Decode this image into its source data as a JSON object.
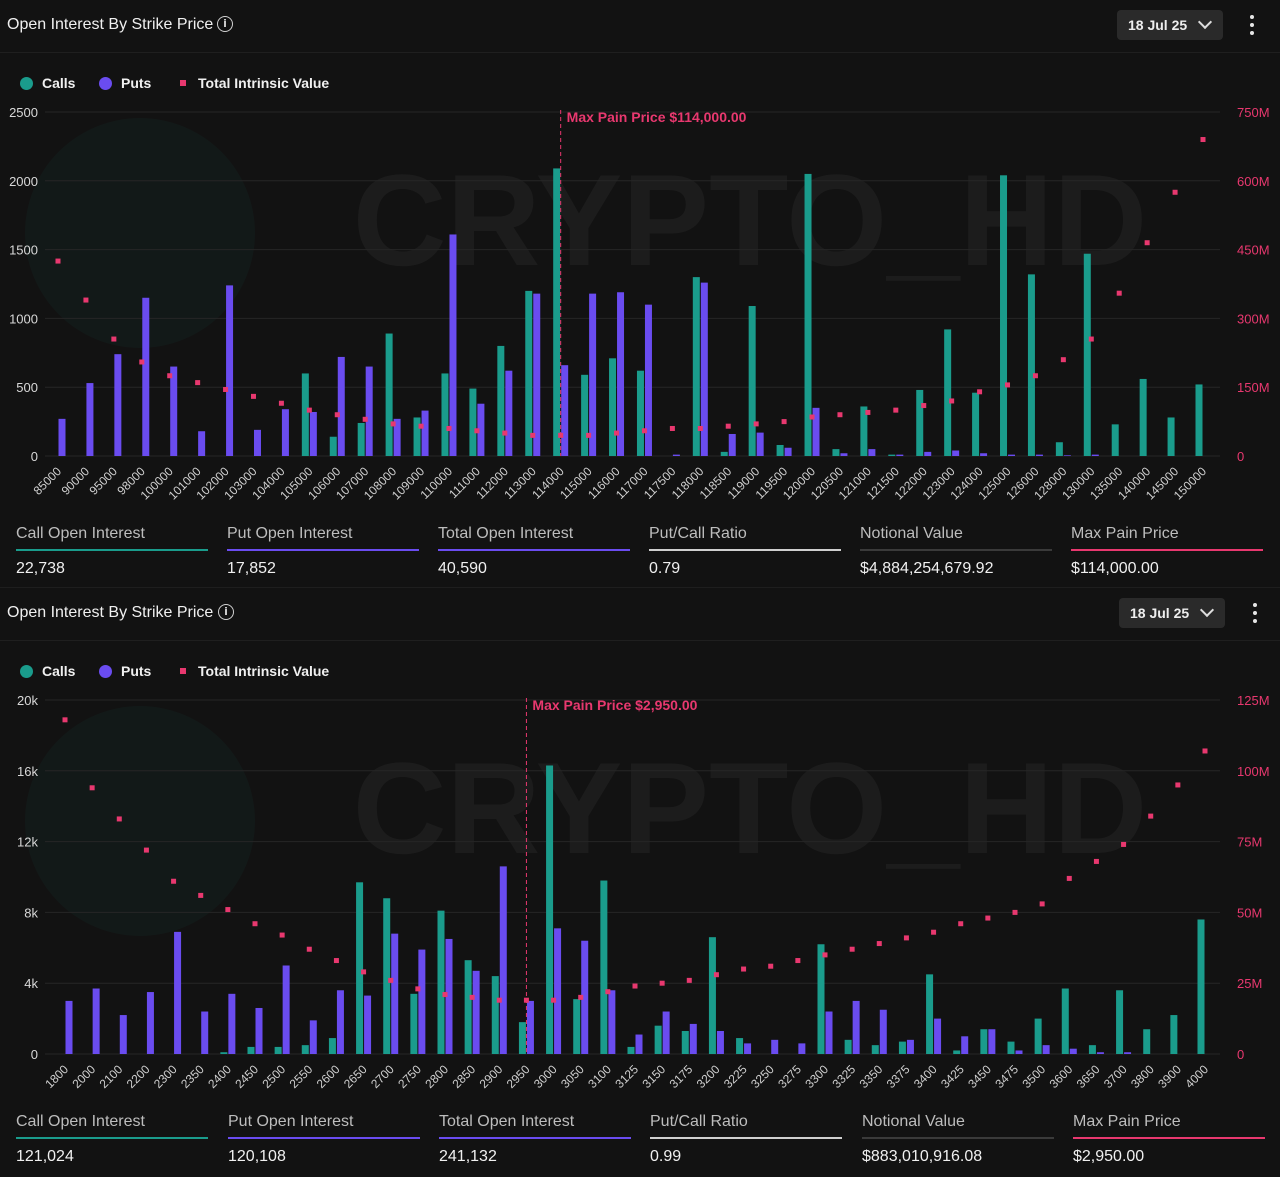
{
  "colors": {
    "calls": "#1a9c8c",
    "puts": "#6a4cf0",
    "intrinsic": "#e8386f",
    "axis_left": "#d8d8d8",
    "axis_right": "#e8386f"
  },
  "watermark": "CRYPTO_HD",
  "panels": [
    {
      "title": "Open Interest By Strike Price",
      "info_icon": "info-icon",
      "date": "18 Jul 25",
      "legend": {
        "calls": "Calls",
        "puts": "Puts",
        "intrinsic": "Total Intrinsic Value"
      },
      "stats": [
        {
          "label": "Call Open Interest",
          "value": "22,738",
          "color": "#1a9c8c"
        },
        {
          "label": "Put Open Interest",
          "value": "17,852",
          "color": "#6a4cf0"
        },
        {
          "label": "Total Open Interest",
          "value": "40,590",
          "color": "#6a4cf0"
        },
        {
          "label": "Put/Call Ratio",
          "value": "0.79",
          "color": "#cfcfcf"
        },
        {
          "label": "Notional Value",
          "value": "$4,884,254,679.92",
          "color": "#3a3a3a"
        },
        {
          "label": "Max Pain Price",
          "value": "$114,000.00",
          "color": "#e8386f"
        }
      ]
    },
    {
      "title": "Open Interest By Strike Price",
      "info_icon": "info-icon",
      "date": "18 Jul 25",
      "legend": {
        "calls": "Calls",
        "puts": "Puts",
        "intrinsic": "Total Intrinsic Value"
      },
      "stats": [
        {
          "label": "Call Open Interest",
          "value": "121,024",
          "color": "#1a9c8c"
        },
        {
          "label": "Put Open Interest",
          "value": "120,108",
          "color": "#6a4cf0"
        },
        {
          "label": "Total Open Interest",
          "value": "241,132",
          "color": "#6a4cf0"
        },
        {
          "label": "Put/Call Ratio",
          "value": "0.99",
          "color": "#cfcfcf"
        },
        {
          "label": "Notional Value",
          "value": "$883,010,916.08",
          "color": "#3a3a3a"
        },
        {
          "label": "Max Pain Price",
          "value": "$2,950.00",
          "color": "#e8386f"
        }
      ]
    }
  ],
  "chart_data": [
    {
      "type": "bar",
      "categories": [
        "85000",
        "90000",
        "95000",
        "98000",
        "100000",
        "101000",
        "102000",
        "103000",
        "104000",
        "105000",
        "106000",
        "107000",
        "108000",
        "109000",
        "110000",
        "111000",
        "112000",
        "113000",
        "114000",
        "115000",
        "116000",
        "117000",
        "117500",
        "118000",
        "118500",
        "119000",
        "119500",
        "120000",
        "120500",
        "121000",
        "121500",
        "122000",
        "123000",
        "124000",
        "125000",
        "126000",
        "128000",
        "130000",
        "135000",
        "140000",
        "145000",
        "150000"
      ],
      "series": [
        {
          "name": "Calls",
          "axis": "left",
          "values": [
            0,
            0,
            0,
            0,
            0,
            0,
            0,
            0,
            0,
            600,
            140,
            240,
            890,
            280,
            600,
            490,
            800,
            1200,
            2090,
            590,
            710,
            620,
            0,
            1300,
            30,
            1090,
            80,
            2050,
            50,
            360,
            10,
            480,
            920,
            460,
            2040,
            1320,
            100,
            1470,
            230,
            560,
            280,
            520
          ]
        },
        {
          "name": "Puts",
          "axis": "left",
          "values": [
            270,
            530,
            740,
            1150,
            650,
            180,
            1240,
            190,
            340,
            320,
            720,
            650,
            270,
            330,
            1610,
            380,
            620,
            1180,
            660,
            1180,
            1190,
            1100,
            10,
            1260,
            160,
            170,
            60,
            350,
            20,
            50,
            10,
            30,
            40,
            20,
            10,
            10,
            5,
            10,
            0,
            0,
            0,
            0
          ]
        },
        {
          "name": "Total Intrinsic Value",
          "axis": "right",
          "type": "scatter",
          "values": [
            425,
            340,
            255,
            205,
            175,
            160,
            145,
            130,
            115,
            100,
            90,
            80,
            70,
            65,
            60,
            55,
            50,
            45,
            45,
            45,
            50,
            55,
            60,
            60,
            65,
            70,
            75,
            85,
            90,
            95,
            100,
            110,
            120,
            140,
            155,
            175,
            210,
            255,
            355,
            465,
            575,
            690
          ]
        }
      ],
      "ylim": [
        0,
        2500
      ],
      "yticks": [
        "0",
        "500",
        "1000",
        "1500",
        "2000",
        "2500"
      ],
      "y2lim": [
        0,
        750
      ],
      "y2ticks": [
        "0",
        "150M",
        "300M",
        "450M",
        "600M",
        "750M"
      ],
      "marker": {
        "category": "114000",
        "label": "Max Pain Price $114,000.00"
      },
      "grid": true,
      "legend": "top-left"
    },
    {
      "type": "bar",
      "categories": [
        "1800",
        "2000",
        "2100",
        "2200",
        "2300",
        "2350",
        "2400",
        "2450",
        "2500",
        "2550",
        "2600",
        "2650",
        "2700",
        "2750",
        "2800",
        "2850",
        "2900",
        "2950",
        "3000",
        "3050",
        "3100",
        "3125",
        "3150",
        "3175",
        "3200",
        "3225",
        "3250",
        "3275",
        "3300",
        "3325",
        "3350",
        "3375",
        "3400",
        "3425",
        "3450",
        "3475",
        "3500",
        "3600",
        "3650",
        "3700",
        "3800",
        "3900",
        "4000"
      ],
      "series": [
        {
          "name": "Calls",
          "axis": "left",
          "values": [
            0,
            0,
            0,
            0,
            0,
            0,
            100,
            400,
            400,
            500,
            900,
            9700,
            8800,
            3400,
            8100,
            5300,
            4400,
            1800,
            16300,
            3100,
            9800,
            400,
            1600,
            1300,
            6600,
            900,
            0,
            0,
            6200,
            800,
            500,
            700,
            4500,
            200,
            1400,
            700,
            2000,
            3700,
            500,
            3600,
            1400,
            2200,
            7600
          ]
        },
        {
          "name": "Puts",
          "axis": "left",
          "values": [
            3000,
            3700,
            2200,
            3500,
            6900,
            2400,
            3400,
            2600,
            5000,
            1900,
            3600,
            3300,
            6800,
            5900,
            6500,
            4700,
            10600,
            3000,
            7100,
            6400,
            3600,
            1100,
            2400,
            1700,
            1300,
            600,
            800,
            600,
            2400,
            3000,
            2500,
            800,
            2000,
            1000,
            1400,
            200,
            500,
            300,
            100,
            100,
            0,
            0,
            0
          ]
        },
        {
          "name": "Total Intrinsic Value",
          "axis": "right",
          "type": "scatter",
          "values": [
            118,
            94,
            83,
            72,
            61,
            56,
            51,
            46,
            42,
            37,
            33,
            29,
            26,
            23,
            21,
            20,
            19,
            19,
            19,
            20,
            22,
            24,
            25,
            26,
            28,
            30,
            31,
            33,
            35,
            37,
            39,
            41,
            43,
            46,
            48,
            50,
            53,
            62,
            68,
            74,
            84,
            95,
            107
          ]
        }
      ],
      "ylim": [
        0,
        20000
      ],
      "yticks": [
        "0",
        "4k",
        "8k",
        "12k",
        "16k",
        "20k"
      ],
      "y2lim": [
        0,
        125
      ],
      "y2ticks": [
        "0",
        "25M",
        "50M",
        "75M",
        "100M",
        "125M"
      ],
      "marker": {
        "category": "2950",
        "label": "Max Pain Price $2,950.00"
      },
      "grid": true,
      "legend": "top-left"
    }
  ]
}
